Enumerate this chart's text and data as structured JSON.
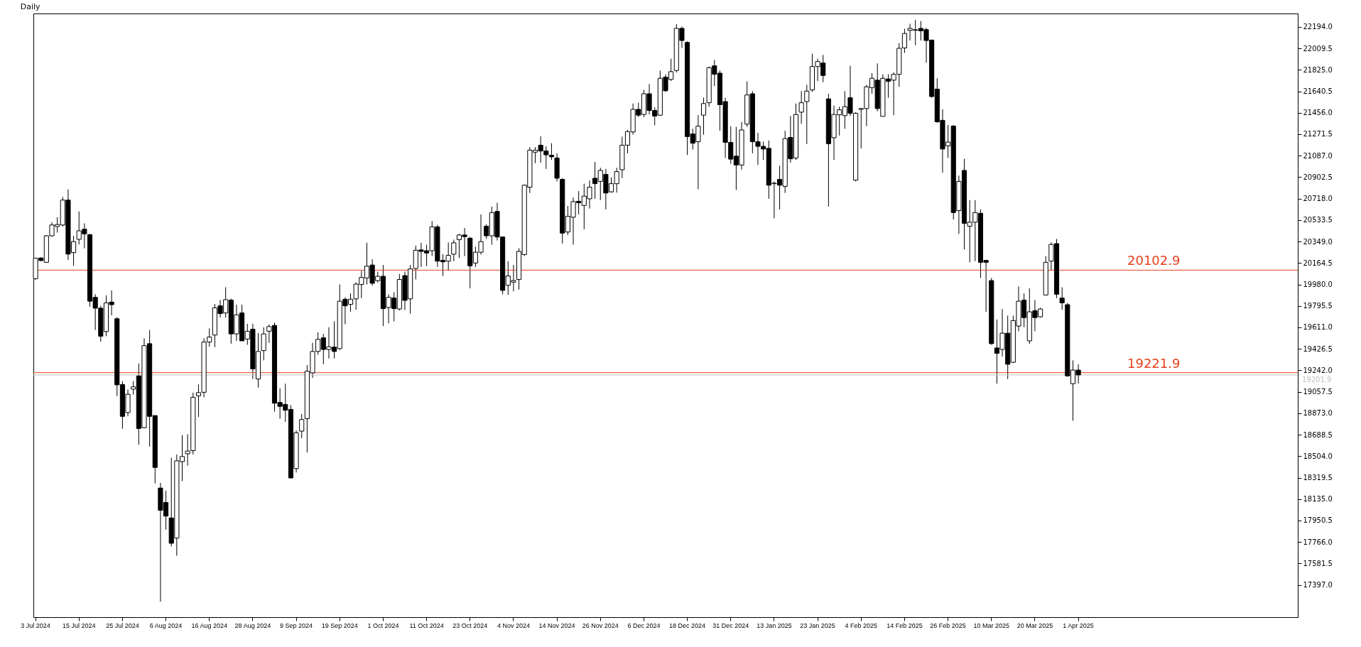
{
  "chart_data": {
    "type": "candlestick",
    "title": "Daily",
    "color": "#000000",
    "categories": [
      "3 Jul 2024",
      null,
      null,
      null,
      null,
      null,
      null,
      null,
      "15 Jul 2024",
      null,
      null,
      null,
      null,
      null,
      null,
      null,
      "25 Jul 2024",
      null,
      null,
      null,
      null,
      null,
      null,
      null,
      "6 Aug 2024",
      null,
      null,
      null,
      null,
      null,
      null,
      null,
      "16 Aug 2024",
      null,
      null,
      null,
      null,
      null,
      null,
      null,
      "28 Aug 2024",
      null,
      null,
      null,
      null,
      null,
      null,
      null,
      "9 Sep 2024",
      null,
      null,
      null,
      null,
      null,
      null,
      null,
      "19 Sep 2024",
      null,
      null,
      null,
      null,
      null,
      null,
      null,
      "1 Oct 2024",
      null,
      null,
      null,
      null,
      null,
      null,
      null,
      "11 Oct 2024",
      null,
      null,
      null,
      null,
      null,
      null,
      null,
      "23 Oct 2024",
      null,
      null,
      null,
      null,
      null,
      null,
      null,
      "4 Nov 2024",
      null,
      null,
      null,
      null,
      null,
      null,
      null,
      "14 Nov 2024",
      null,
      null,
      null,
      null,
      null,
      null,
      null,
      "26 Nov 2024",
      null,
      null,
      null,
      null,
      null,
      null,
      null,
      "6 Dec 2024",
      null,
      null,
      null,
      null,
      null,
      null,
      null,
      "18 Dec 2024",
      null,
      null,
      null,
      null,
      null,
      null,
      null,
      "31 Dec 2024",
      null,
      null,
      null,
      null,
      null,
      null,
      null,
      "13 Jan 2025",
      null,
      null,
      null,
      null,
      null,
      null,
      null,
      "23 Jan 2025",
      null,
      null,
      null,
      null,
      null,
      null,
      null,
      "4 Feb 2025",
      null,
      null,
      null,
      null,
      null,
      null,
      null,
      "14 Feb 2025",
      null,
      null,
      null,
      null,
      null,
      null,
      null,
      "26 Feb 2025",
      null,
      null,
      null,
      null,
      null,
      null,
      null,
      "10 Mar 2025",
      null,
      null,
      null,
      null,
      null,
      null,
      null,
      "20 Mar 2025",
      null,
      null,
      null,
      null,
      null,
      null,
      null,
      "1 Apr 2025",
      null,
      null,
      null,
      null,
      null,
      null,
      null,
      null,
      null,
      null,
      null,
      null,
      null,
      null,
      null,
      null,
      null,
      null,
      null,
      null,
      null,
      null,
      null,
      null,
      null,
      null,
      null,
      null,
      null,
      null,
      null,
      null,
      null,
      null,
      null,
      null,
      null,
      null,
      null,
      null
    ],
    "ohlc": [
      [
        20030,
        20210,
        20020,
        20205
      ],
      [
        20207,
        20215,
        20180,
        20185
      ],
      [
        20170,
        20405,
        20165,
        20398
      ],
      [
        20398,
        20515,
        20390,
        20491
      ],
      [
        20478,
        20558,
        20425,
        20495
      ],
      [
        20491,
        20732,
        20478,
        20705
      ],
      [
        20705,
        20796,
        20190,
        20241
      ],
      [
        20254,
        20398,
        20140,
        20348
      ],
      [
        20368,
        20608,
        20324,
        20441
      ],
      [
        20455,
        20505,
        20290,
        20415
      ],
      [
        20408,
        20415,
        19789,
        19836
      ],
      [
        19869,
        19896,
        19588,
        19776
      ],
      [
        19776,
        19796,
        19488,
        19535
      ],
      [
        19575,
        19886,
        19535,
        19822
      ],
      [
        19829,
        19929,
        19715,
        19806
      ],
      [
        19685,
        19699,
        19020,
        19117
      ],
      [
        19120,
        19150,
        18739,
        18846
      ],
      [
        18879,
        19077,
        18846,
        19036
      ],
      [
        19080,
        19150,
        19033,
        19100
      ],
      [
        19194,
        19301,
        18601,
        18742
      ],
      [
        18749,
        19518,
        18743,
        19454
      ],
      [
        19471,
        19588,
        18585,
        18846
      ],
      [
        18853,
        18853,
        18270,
        18407
      ],
      [
        18230,
        18274,
        17253,
        18039
      ],
      [
        18106,
        18207,
        17872,
        17989
      ],
      [
        17973,
        18490,
        17728,
        17755
      ],
      [
        17799,
        18518,
        17648,
        18464
      ],
      [
        18457,
        18685,
        18290,
        18501
      ],
      [
        18525,
        18692,
        18422,
        18548
      ],
      [
        18551,
        19050,
        18518,
        19010
      ],
      [
        19023,
        19120,
        18840,
        19050
      ],
      [
        19053,
        19518,
        19010,
        19485
      ],
      [
        19485,
        19602,
        19444,
        19528
      ],
      [
        19545,
        19812,
        19441,
        19779
      ],
      [
        19796,
        19846,
        19695,
        19729
      ],
      [
        19735,
        19956,
        19695,
        19849
      ],
      [
        19846,
        19856,
        19471,
        19555
      ],
      [
        19555,
        19806,
        19495,
        19719
      ],
      [
        19735,
        19806,
        19495,
        19495
      ],
      [
        19511,
        19642,
        19461,
        19578
      ],
      [
        19595,
        19642,
        19167,
        19254
      ],
      [
        19167,
        19561,
        19093,
        19404
      ],
      [
        19411,
        19612,
        19327,
        19555
      ],
      [
        19578,
        19635,
        19478,
        19618
      ],
      [
        19628,
        19652,
        18886,
        18959
      ],
      [
        18966,
        19087,
        18826,
        18932
      ],
      [
        18949,
        19127,
        18799,
        18899
      ],
      [
        18906,
        18943,
        18310,
        18317
      ],
      [
        18397,
        18725,
        18364,
        18705
      ],
      [
        18719,
        18866,
        18658,
        18819
      ],
      [
        18826,
        19287,
        18535,
        19234
      ],
      [
        19220,
        19478,
        19177,
        19404
      ],
      [
        19404,
        19568,
        19377,
        19508
      ],
      [
        19521,
        19555,
        19294,
        19421
      ],
      [
        19421,
        19612,
        19344,
        19444
      ],
      [
        19441,
        19662,
        19344,
        19404
      ],
      [
        19428,
        19980,
        19418,
        19836
      ],
      [
        19853,
        19869,
        19638,
        19796
      ],
      [
        19809,
        19903,
        19746,
        19853
      ],
      [
        19856,
        19997,
        19762,
        19983
      ],
      [
        19980,
        20097,
        19863,
        20040
      ],
      [
        20036,
        20338,
        19980,
        20137
      ],
      [
        20147,
        20197,
        19970,
        19990
      ],
      [
        20013,
        20090,
        19996,
        20050
      ],
      [
        20050,
        20147,
        19622,
        19772
      ],
      [
        19782,
        19896,
        19645,
        19869
      ],
      [
        19863,
        19913,
        19662,
        19772
      ],
      [
        19769,
        20070,
        19756,
        20023
      ],
      [
        20056,
        20090,
        19759,
        19843
      ],
      [
        19856,
        20147,
        19729,
        20113
      ],
      [
        20117,
        20314,
        20023,
        20274
      ],
      [
        20277,
        20338,
        20130,
        20264
      ],
      [
        20270,
        20321,
        20137,
        20250
      ],
      [
        20270,
        20525,
        20224,
        20475
      ],
      [
        20475,
        20492,
        20130,
        20180
      ],
      [
        20187,
        20240,
        20053,
        20174
      ],
      [
        20180,
        20341,
        20097,
        20230
      ],
      [
        20240,
        20365,
        20180,
        20338
      ],
      [
        20365,
        20415,
        20207,
        20405
      ],
      [
        20405,
        20465,
        20224,
        20391
      ],
      [
        20378,
        20388,
        19946,
        20140
      ],
      [
        20164,
        20304,
        20130,
        20257
      ],
      [
        20257,
        20582,
        20237,
        20348
      ],
      [
        20481,
        20498,
        20371,
        20398
      ],
      [
        20398,
        20649,
        20321,
        20598
      ],
      [
        20608,
        20682,
        20358,
        20388
      ],
      [
        20388,
        20388,
        19896,
        19929
      ],
      [
        19973,
        20180,
        19890,
        20053
      ],
      [
        20000,
        20147,
        19920,
        20013
      ],
      [
        20023,
        20291,
        19936,
        20264
      ],
      [
        20237,
        20840,
        20224,
        20833
      ],
      [
        20816,
        21160,
        20766,
        21134
      ],
      [
        21117,
        21160,
        21023,
        21134
      ],
      [
        21177,
        21254,
        21027,
        21127
      ],
      [
        21127,
        21167,
        20973,
        21094
      ],
      [
        21090,
        21194,
        21050,
        21077
      ],
      [
        21067,
        21107,
        20866,
        20893
      ],
      [
        20883,
        20893,
        20331,
        20421
      ],
      [
        20431,
        20655,
        20405,
        20565
      ],
      [
        20558,
        20726,
        20321,
        20692
      ],
      [
        20695,
        20782,
        20582,
        20682
      ],
      [
        20659,
        20846,
        20455,
        20739
      ],
      [
        20716,
        20873,
        20632,
        20816
      ],
      [
        20893,
        21033,
        20716,
        20846
      ],
      [
        20866,
        20983,
        20705,
        20960
      ],
      [
        20926,
        20973,
        20625,
        20766
      ],
      [
        20776,
        20900,
        20769,
        20846
      ],
      [
        20846,
        20983,
        20769,
        20950
      ],
      [
        20966,
        21251,
        20893,
        21177
      ],
      [
        21177,
        21308,
        21107,
        21294
      ],
      [
        21291,
        21535,
        21268,
        21485
      ],
      [
        21485,
        21542,
        21418,
        21435
      ],
      [
        21441,
        21652,
        21418,
        21619
      ],
      [
        21619,
        21702,
        21441,
        21475
      ],
      [
        21475,
        21502,
        21348,
        21428
      ],
      [
        21435,
        21819,
        21428,
        21752
      ],
      [
        21762,
        21786,
        21635,
        21645
      ],
      [
        21742,
        21920,
        21729,
        21809
      ],
      [
        21819,
        22217,
        21802,
        22181
      ],
      [
        22181,
        22197,
        22013,
        22077
      ],
      [
        22060,
        22070,
        21093,
        21251
      ],
      [
        21274,
        21318,
        21140,
        21194
      ],
      [
        21207,
        21435,
        20799,
        21341
      ],
      [
        21435,
        21585,
        21267,
        21535
      ],
      [
        21542,
        21853,
        21508,
        21843
      ],
      [
        21859,
        21910,
        21686,
        21786
      ],
      [
        21796,
        21819,
        21301,
        21525
      ],
      [
        21552,
        21585,
        21067,
        21201
      ],
      [
        21201,
        21341,
        21017,
        21057
      ],
      [
        21083,
        21334,
        20792,
        21007
      ],
      [
        21007,
        21375,
        20967,
        21308
      ],
      [
        21358,
        21726,
        21334,
        21609
      ],
      [
        21619,
        21642,
        21107,
        21207
      ],
      [
        21207,
        21284,
        21007,
        21167
      ],
      [
        21167,
        21207,
        21050,
        21144
      ],
      [
        21150,
        21217,
        20716,
        20833
      ],
      [
        20846,
        20866,
        20548,
        20850
      ],
      [
        20883,
        21000,
        20625,
        20833
      ],
      [
        20823,
        21301,
        20766,
        21234
      ],
      [
        21244,
        21428,
        21027,
        21060
      ],
      [
        21067,
        21535,
        21050,
        21441
      ],
      [
        21461,
        21642,
        21361,
        21542
      ],
      [
        21552,
        21696,
        21187,
        21642
      ],
      [
        21652,
        21963,
        21636,
        21853
      ],
      [
        21853,
        21920,
        21729,
        21896
      ],
      [
        21883,
        21953,
        21719,
        21776
      ],
      [
        21575,
        21619,
        20649,
        21190
      ],
      [
        21241,
        21518,
        21050,
        21441
      ],
      [
        21438,
        21508,
        21260,
        21481
      ],
      [
        21431,
        21642,
        21318,
        21508
      ],
      [
        21585,
        21859,
        21428,
        21451
      ],
      [
        20876,
        21461,
        20866,
        21451
      ],
      [
        21485,
        21495,
        21150,
        21492
      ],
      [
        21492,
        21696,
        21341,
        21679
      ],
      [
        21672,
        21796,
        21619,
        21752
      ],
      [
        21736,
        21880,
        21468,
        21492
      ],
      [
        21425,
        21786,
        21425,
        21752
      ],
      [
        21746,
        21786,
        21585,
        21726
      ],
      [
        21736,
        21803,
        21435,
        21786
      ],
      [
        21786,
        22054,
        21679,
        22010
      ],
      [
        22013,
        22177,
        21970,
        22137
      ],
      [
        22164,
        22221,
        22077,
        22181
      ],
      [
        22164,
        22254,
        22037,
        22170
      ],
      [
        22181,
        22244,
        22077,
        22160
      ],
      [
        22170,
        22187,
        21886,
        22077
      ],
      [
        22080,
        22087,
        21585,
        21595
      ],
      [
        21659,
        21752,
        21368,
        21378
      ],
      [
        21391,
        21485,
        20940,
        21144
      ],
      [
        21171,
        21351,
        21067,
        21204
      ],
      [
        21341,
        21351,
        20538,
        20598
      ],
      [
        20615,
        20916,
        20414,
        20866
      ],
      [
        20960,
        21060,
        20281,
        20505
      ],
      [
        20481,
        20705,
        20170,
        20515
      ],
      [
        20515,
        20705,
        20180,
        20598
      ],
      [
        20592,
        20625,
        20036,
        20170
      ],
      [
        20187,
        20190,
        19745,
        20170
      ],
      [
        20013,
        20036,
        19461,
        19471
      ],
      [
        19434,
        19679,
        19127,
        19388
      ],
      [
        19421,
        19769,
        19361,
        19561
      ],
      [
        19561,
        19712,
        19167,
        19294
      ],
      [
        19311,
        19712,
        19304,
        19669
      ],
      [
        19622,
        19963,
        19578,
        19836
      ],
      [
        19846,
        19903,
        19612,
        19695
      ],
      [
        19495,
        19946,
        19468,
        19745
      ],
      [
        19755,
        19846,
        19578,
        19695
      ],
      [
        19702,
        19779,
        19695,
        19769
      ],
      [
        19889,
        20224,
        19886,
        20170
      ],
      [
        20180,
        20341,
        20103,
        20324
      ],
      [
        20331,
        20371,
        19863,
        19896
      ],
      [
        19863,
        19956,
        19762,
        19822
      ],
      [
        19806,
        19822,
        19187,
        19194
      ],
      [
        19127,
        19327,
        18809,
        19244
      ],
      [
        19244,
        19294,
        19127,
        19202
      ],
      null,
      null,
      null,
      null,
      null,
      null,
      null,
      null,
      null,
      null,
      null,
      null,
      null,
      null,
      null,
      null,
      null,
      null,
      null,
      null,
      null,
      null,
      null,
      null,
      null,
      null,
      null,
      null,
      null,
      null,
      null,
      null,
      null,
      null,
      null,
      null,
      null,
      null,
      null,
      null
    ],
    "ylim": [
      17120,
      22309
    ],
    "yticks": [
      {
        "value": 22194,
        "label": "22194.0"
      },
      22009.5,
      {
        "value": 21825,
        "label": "21825.0"
      },
      21640.5,
      {
        "value": 21456,
        "label": "21456.0"
      },
      21271.5,
      {
        "value": 21087,
        "label": "21087.0"
      },
      20902.5,
      {
        "value": 20718,
        "label": "20718.0"
      },
      20533.5,
      {
        "value": 20349,
        "label": "20349.0"
      },
      20164.5,
      {
        "value": 19980,
        "label": "19980.0"
      },
      19795.5,
      {
        "value": 19611,
        "label": "19611.0"
      },
      19426.5,
      {
        "value": 19242,
        "label": "19242.0"
      },
      19057.5,
      {
        "value": 18873,
        "label": "18873.0"
      },
      18688.5,
      {
        "value": 18504,
        "label": "18504.0"
      },
      18319.5,
      {
        "value": 18135,
        "label": "18135.0"
      },
      17950.5,
      {
        "value": 17766,
        "label": "17766.0"
      },
      17581.5,
      {
        "value": 17397,
        "label": "17397.0"
      }
    ],
    "ref_lines": [
      {
        "axis": "y",
        "value": 19201.9,
        "label": "19201.9",
        "color": "#c0c0c0"
      },
      {
        "axis": "y",
        "value": 20102.9,
        "label": "20102.9",
        "color": "#e8401c"
      },
      {
        "axis": "y",
        "value": 19221.9,
        "label": "19221.9",
        "color": "#e8401c"
      }
    ]
  }
}
